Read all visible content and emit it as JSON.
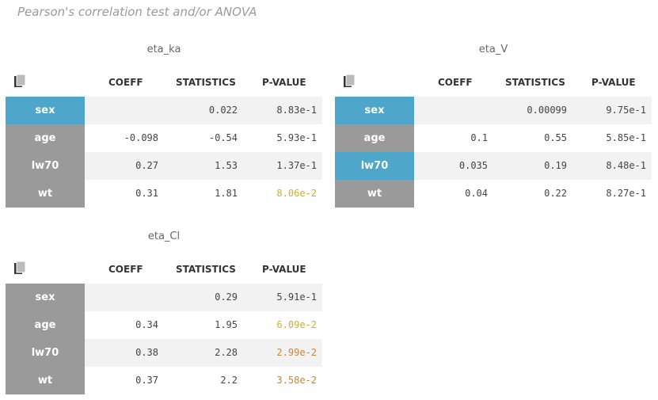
{
  "header": {
    "title": "Pearson's correlation test and/or ANOVA"
  },
  "columns": [
    "COEFF",
    "STATISTICS",
    "P-VALUE"
  ],
  "tables": [
    {
      "title": "eta_ka",
      "rows": [
        {
          "label": "sex",
          "label_color": "#4ea7cb",
          "coeff": null,
          "statistics": "0.022",
          "p_value": "8.83e-1"
        },
        {
          "label": "age",
          "label_color": "#9a9a9a",
          "coeff": "-0.098",
          "statistics": "-0.54",
          "p_value": "5.93e-1"
        },
        {
          "label": "lw70",
          "label_color": "#9a9a9a",
          "coeff": "0.27",
          "statistics": "1.53",
          "p_value": "1.37e-1"
        },
        {
          "label": "wt",
          "label_color": "#9a9a9a",
          "coeff": "0.31",
          "statistics": "1.81",
          "p_value": "8.06e-2",
          "p_value_color": "#d2ad2a"
        }
      ]
    },
    {
      "title": "eta_V",
      "rows": [
        {
          "label": "sex",
          "label_color": "#4ea7cb",
          "coeff": null,
          "statistics": "0.00099",
          "p_value": "9.75e-1"
        },
        {
          "label": "age",
          "label_color": "#9a9a9a",
          "coeff": "0.1",
          "statistics": "0.55",
          "p_value": "5.85e-1"
        },
        {
          "label": "lw70",
          "label_color": "#4ea7cb",
          "coeff": "0.035",
          "statistics": "0.19",
          "p_value": "8.48e-1"
        },
        {
          "label": "wt",
          "label_color": "#9a9a9a",
          "coeff": "0.04",
          "statistics": "0.22",
          "p_value": "8.27e-1"
        }
      ]
    },
    {
      "title": "eta_Cl",
      "rows": [
        {
          "label": "sex",
          "label_color": "#9a9a9a",
          "coeff": null,
          "statistics": "0.29",
          "p_value": "5.91e-1"
        },
        {
          "label": "age",
          "label_color": "#9a9a9a",
          "coeff": "0.34",
          "statistics": "1.95",
          "p_value": "6.09e-2",
          "p_value_color": "#d2ad2a"
        },
        {
          "label": "lw70",
          "label_color": "#9a9a9a",
          "coeff": "0.38",
          "statistics": "2.28",
          "p_value": "2.99e-2",
          "p_value_color": "#c8843a"
        },
        {
          "label": "wt",
          "label_color": "#9a9a9a",
          "coeff": "0.37",
          "statistics": "2.2",
          "p_value": "3.58e-2",
          "p_value_color": "#c8843a"
        }
      ]
    }
  ]
}
